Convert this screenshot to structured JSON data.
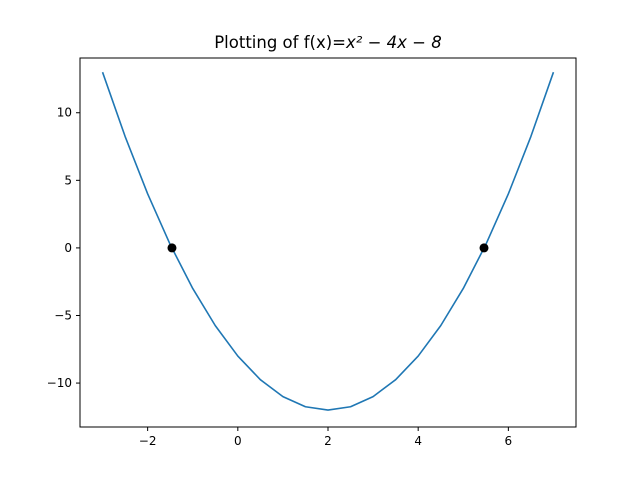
{
  "chart_data": {
    "type": "line",
    "title": {
      "prefix": "Plotting of f(x)=",
      "math": "x² − 4x − 8"
    },
    "function": "x^2 - 4x - 8",
    "xlabel": "",
    "ylabel": "",
    "xlim": [
      -3.5,
      7.5
    ],
    "ylim": [
      -13.25,
      14.05
    ],
    "x_ticks": [
      -2,
      0,
      2,
      4,
      6
    ],
    "y_ticks": [
      10,
      5,
      0,
      -5,
      -10
    ],
    "x_tick_labels": [
      "−2",
      "0",
      "2",
      "4",
      "6"
    ],
    "y_tick_labels": [
      "10",
      "5",
      "0",
      "−5",
      "−10"
    ],
    "series": [
      {
        "x": [
          -3,
          -2.5,
          -2,
          -1.5,
          -1,
          -0.5,
          0,
          0.5,
          1,
          1.5,
          2,
          2.5,
          3,
          3.5,
          4,
          4.5,
          5,
          5.5,
          6,
          6.5,
          7
        ],
        "y": [
          13,
          8.25,
          4,
          0.25,
          -3,
          -5.75,
          -8,
          -9.75,
          -11,
          -11.75,
          -12,
          -11.75,
          -11,
          -9.75,
          -8,
          -5.75,
          -3,
          0.25,
          4,
          8.25,
          13
        ],
        "color": "#1f77b4"
      }
    ],
    "points": [
      {
        "x": -1.46,
        "y": 0,
        "color": "#000000"
      },
      {
        "x": 5.46,
        "y": 0,
        "color": "#000000"
      }
    ],
    "grid": false
  }
}
